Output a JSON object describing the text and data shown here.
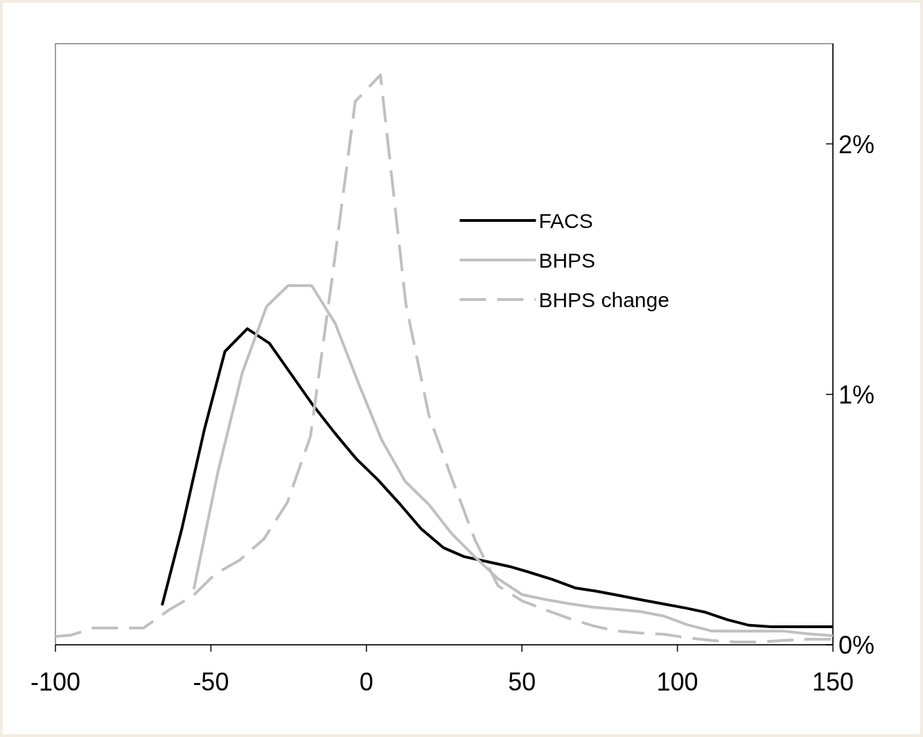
{
  "chart_data": {
    "type": "line",
    "xlim": [
      -100,
      150
    ],
    "xticks": [
      -100,
      -50,
      0,
      50,
      100,
      150
    ],
    "ylim": [
      0,
      2.4
    ],
    "yticks": [
      {
        "value": 0,
        "label": "0%"
      },
      {
        "value": 1,
        "label": "1%"
      },
      {
        "value": 2,
        "label": "2%"
      }
    ],
    "grid": false,
    "legend": "top right",
    "series": [
      {
        "name": "FACS",
        "color": "#000000",
        "line_style": "solid",
        "x": [
          -65.7,
          -59.3,
          -52.1,
          -45.5,
          -38.3,
          -31.2,
          -24.3,
          -17.2,
          -10.2,
          -3.3,
          3.6,
          10.9,
          17.6,
          24.7,
          31.4,
          38.5,
          45.9,
          52.8,
          59.7,
          67.1,
          74.0,
          81.1,
          88.2,
          95.1,
          102.5,
          109.0,
          116.1,
          123.0,
          130.1,
          150
        ],
        "values": [
          0.158,
          0.466,
          0.86,
          1.171,
          1.262,
          1.204,
          1.082,
          0.957,
          0.846,
          0.743,
          0.66,
          0.56,
          0.463,
          0.388,
          0.352,
          0.333,
          0.313,
          0.288,
          0.261,
          0.227,
          0.214,
          0.197,
          0.18,
          0.164,
          0.147,
          0.13,
          0.1,
          0.078,
          0.072,
          0.072
        ]
      },
      {
        "name": "BHPS",
        "color": "#c0c0c0",
        "line_style": "solid",
        "x": [
          -55.5,
          -47.7,
          -39.9,
          -32.1,
          -25.2,
          -17.6,
          -10.0,
          -2.7,
          4.9,
          12.5,
          20.1,
          27.4,
          34.8,
          42.3,
          50.1,
          57.9,
          65.3,
          72.9,
          80.7,
          88.0,
          95.8,
          103.2,
          111.0,
          118.5,
          126.3,
          133.9,
          141.7,
          150
        ],
        "values": [
          0.222,
          0.693,
          1.087,
          1.351,
          1.434,
          1.434,
          1.282,
          1.049,
          0.818,
          0.652,
          0.56,
          0.444,
          0.352,
          0.264,
          0.2,
          0.18,
          0.164,
          0.15,
          0.141,
          0.133,
          0.114,
          0.08,
          0.055,
          0.055,
          0.055,
          0.055,
          0.044,
          0.036
        ]
      },
      {
        "name": "BHPS change",
        "color": "#c0c0c0",
        "line_style": "dashed",
        "x": [
          -100,
          -94.9,
          -87.8,
          -71.7,
          -63.5,
          -55.9,
          -48.6,
          -40.8,
          -33.0,
          -25.4,
          -18.0,
          -10.5,
          -3.6,
          4.5,
          12.7,
          20.1,
          27.4,
          35.0,
          42.3,
          50.1,
          57.7,
          65.3,
          73.1,
          80.4,
          88.0,
          95.6,
          103.2,
          111.0,
          118.5,
          126.3,
          133.9,
          141.7,
          150
        ],
        "values": [
          0.033,
          0.039,
          0.067,
          0.067,
          0.139,
          0.194,
          0.283,
          0.338,
          0.422,
          0.569,
          0.832,
          1.512,
          2.169,
          2.275,
          1.359,
          0.915,
          0.666,
          0.416,
          0.236,
          0.175,
          0.139,
          0.105,
          0.075,
          0.055,
          0.047,
          0.042,
          0.028,
          0.017,
          0.011,
          0.011,
          0.017,
          0.022,
          0.022
        ]
      }
    ]
  }
}
